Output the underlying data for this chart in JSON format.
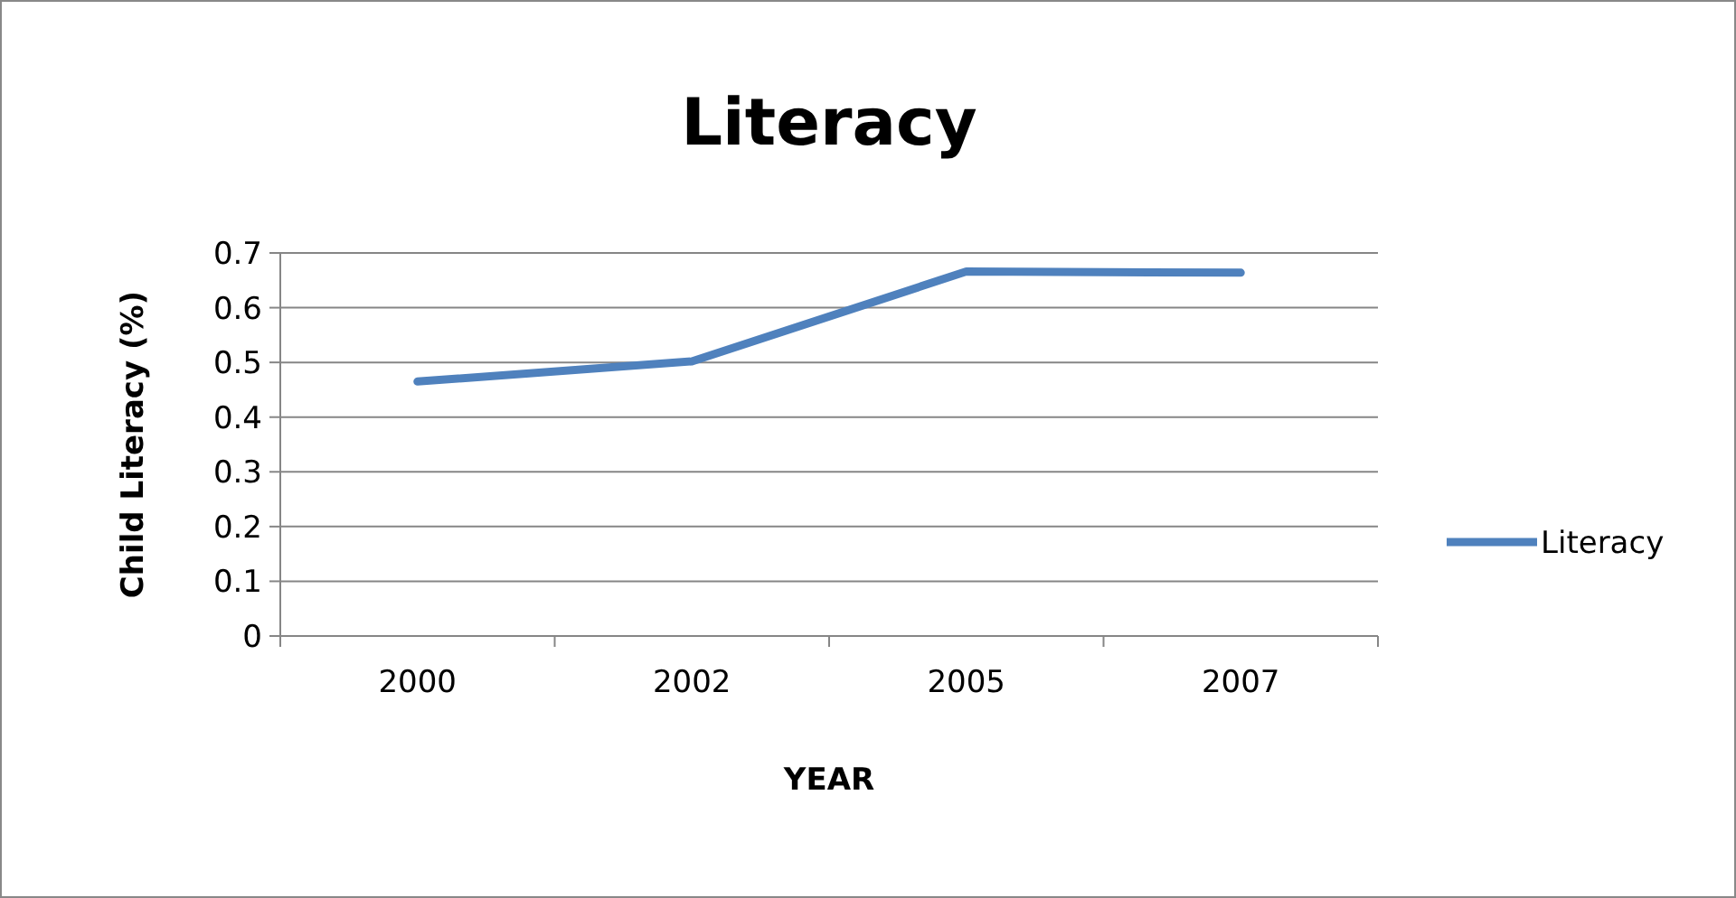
{
  "chart_data": {
    "type": "line",
    "title": "Literacy",
    "xlabel": "YEAR",
    "ylabel": "Child Literacy (%)",
    "categories": [
      "2000",
      "2002",
      "2005",
      "2007"
    ],
    "series": [
      {
        "name": "Literacy",
        "color": "#4f81bd",
        "values": [
          0.465,
          0.502,
          0.666,
          0.664
        ]
      }
    ],
    "ylim": [
      0,
      0.7
    ],
    "yticks": [
      0,
      0.1,
      0.2,
      0.3,
      0.4,
      0.5,
      0.6,
      0.7
    ],
    "grid": "y",
    "legend": "right",
    "marker": "none",
    "line_style": "solid"
  }
}
